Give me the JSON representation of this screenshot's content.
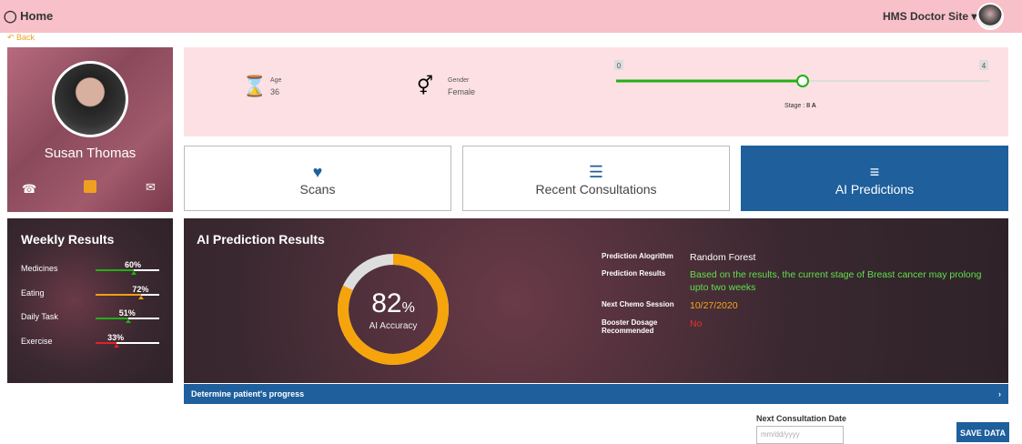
{
  "header": {
    "title": "Home",
    "site": "HMS Doctor Site"
  },
  "back": "Back",
  "profile": {
    "name": "Susan Thomas"
  },
  "info": {
    "age_label": "Age",
    "age": 36,
    "gender_label": "Gender",
    "gender": "Female",
    "stage": {
      "min": 0,
      "max": 4,
      "value": 2,
      "label": "Stage : ",
      "name": "II A"
    }
  },
  "tabs": [
    "Scans",
    "Recent Consultations",
    "AI Predictions"
  ],
  "weekly": {
    "title": "Weekly Results",
    "items": [
      {
        "name": "Medicines",
        "value": 60,
        "label": "60%",
        "color": "#22b014"
      },
      {
        "name": "Eating",
        "value": 72,
        "label": "72%",
        "color": "#f0a010"
      },
      {
        "name": "Daily Task",
        "value": 51,
        "label": "51%",
        "color": "#22b014"
      },
      {
        "name": "Exercise",
        "value": 33,
        "label": "33%",
        "color": "#e0202a"
      }
    ]
  },
  "prediction": {
    "title": "AI Prediction Results",
    "accuracy": 82,
    "unit": "%",
    "accuracy_label": "AI Accuracy",
    "rows": [
      {
        "label": "Prediction Alogrithm",
        "value": "Random Forest",
        "color": "#ffffff"
      },
      {
        "label": "Prediction Results",
        "value": "Based on the results, the current stage of Breast cancer may prolong upto two weeks",
        "color": "#5fe04a"
      },
      {
        "label": "Next Chemo Session",
        "value": "10/27/2020",
        "color": "#f5a623"
      },
      {
        "label": "Booster Dosage Recommended",
        "value": "No",
        "color": "#e8322d"
      }
    ]
  },
  "progress_bar": "Determine patient's progress",
  "consultation": {
    "label": "Next Consultation Date",
    "placeholder": "mm/dd/yyyy",
    "button": "SAVE DATA"
  }
}
